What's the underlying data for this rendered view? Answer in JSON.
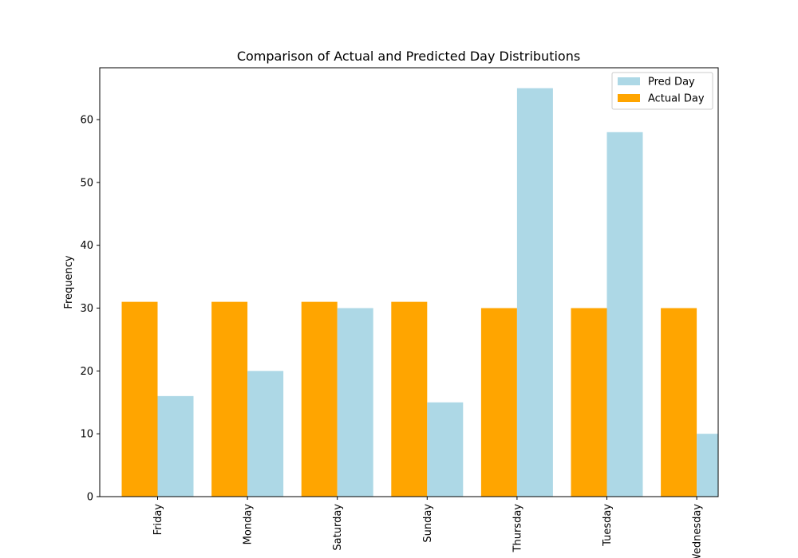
{
  "chart_data": {
    "type": "bar",
    "title": "Comparison of Actual and Predicted Day Distributions",
    "xlabel": "",
    "ylabel": "Frequency",
    "categories": [
      "Friday",
      "Monday",
      "Saturday",
      "Sunday",
      "Thursday",
      "Tuesday",
      "Wednesday"
    ],
    "series": [
      {
        "name": "Actual Day",
        "color": "#ffa500",
        "values": [
          31,
          31,
          31,
          31,
          30,
          30,
          30
        ]
      },
      {
        "name": "Pred Day",
        "color": "#add8e6",
        "values": [
          16,
          20,
          30,
          15,
          65,
          58,
          10
        ]
      }
    ],
    "ylim": [
      0,
      68.25
    ],
    "yticks": [
      0,
      10,
      20,
      30,
      40,
      50,
      60
    ],
    "grid": false,
    "legend": {
      "position": "top-right",
      "order": [
        "Pred Day",
        "Actual Day"
      ]
    }
  }
}
